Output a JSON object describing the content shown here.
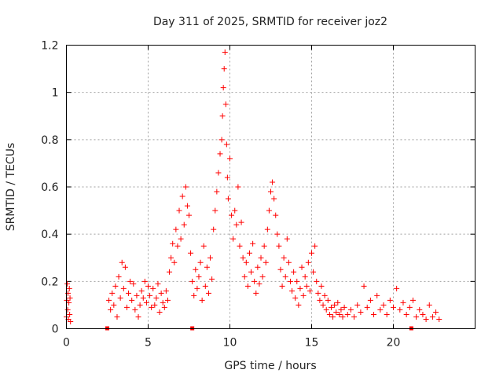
{
  "chart_data": {
    "type": "scatter",
    "title": "Day 311 of 2025, SRMTID for receiver joz2",
    "xlabel": "GPS time / hours",
    "ylabel": "SRMTID / TECUs",
    "xlim": [
      0,
      25
    ],
    "ylim": [
      0,
      1.2
    ],
    "xticks": [
      0,
      5,
      10,
      15,
      20
    ],
    "yticks": [
      0,
      0.2,
      0.4,
      0.6,
      0.8,
      1,
      1.2
    ],
    "xtick_labels": [
      "0",
      "5",
      "10",
      "15",
      "20"
    ],
    "ytick_labels": [
      "0",
      "0.2",
      "0.4",
      "0.6",
      "0.8",
      "1",
      "1.2"
    ],
    "grid": true,
    "marker": "+",
    "color": "#ff0000",
    "series": [
      {
        "name": "SRMTID",
        "x": [
          0.0,
          0.02,
          0.05,
          0.08,
          0.1,
          0.12,
          0.15,
          0.18,
          0.2,
          0.22,
          0.25,
          2.6,
          2.7,
          2.8,
          2.9,
          3.0,
          3.1,
          3.2,
          3.3,
          3.4,
          3.5,
          3.6,
          3.7,
          3.8,
          3.9,
          4.0,
          4.1,
          4.2,
          4.3,
          4.4,
          4.5,
          4.6,
          4.7,
          4.8,
          4.9,
          5.0,
          5.1,
          5.2,
          5.3,
          5.4,
          5.5,
          5.6,
          5.7,
          5.8,
          5.9,
          6.0,
          6.1,
          6.2,
          6.3,
          6.4,
          6.5,
          6.6,
          6.7,
          6.8,
          6.9,
          7.0,
          7.1,
          7.2,
          7.3,
          7.4,
          7.5,
          7.6,
          7.7,
          7.8,
          7.9,
          8.0,
          8.1,
          8.2,
          8.3,
          8.4,
          8.5,
          8.6,
          8.7,
          8.8,
          8.9,
          9.0,
          9.1,
          9.2,
          9.3,
          9.4,
          9.5,
          9.55,
          9.6,
          9.65,
          9.7,
          9.75,
          9.8,
          9.85,
          9.9,
          10.0,
          10.1,
          10.2,
          10.3,
          10.4,
          10.5,
          10.6,
          10.7,
          10.8,
          10.9,
          11.0,
          11.1,
          11.2,
          11.3,
          11.4,
          11.5,
          11.6,
          11.7,
          11.8,
          11.9,
          12.0,
          12.1,
          12.2,
          12.3,
          12.4,
          12.5,
          12.6,
          12.7,
          12.8,
          12.9,
          13.0,
          13.1,
          13.2,
          13.3,
          13.4,
          13.5,
          13.6,
          13.7,
          13.8,
          13.9,
          14.0,
          14.1,
          14.2,
          14.3,
          14.4,
          14.5,
          14.6,
          14.7,
          14.8,
          14.9,
          15.0,
          15.1,
          15.2,
          15.3,
          15.4,
          15.5,
          15.6,
          15.7,
          15.8,
          15.9,
          16.0,
          16.1,
          16.2,
          16.3,
          16.4,
          16.5,
          16.6,
          16.7,
          16.8,
          16.9,
          17.0,
          17.2,
          17.4,
          17.6,
          17.8,
          18.0,
          18.2,
          18.4,
          18.6,
          18.8,
          19.0,
          19.2,
          19.4,
          19.6,
          19.8,
          20.0,
          20.2,
          20.4,
          20.6,
          20.8,
          21.0,
          21.2,
          21.4,
          21.6,
          21.8,
          22.0,
          22.2,
          22.4,
          22.6,
          22.8
        ],
        "y": [
          0.05,
          0.12,
          0.19,
          0.08,
          0.15,
          0.04,
          0.11,
          0.17,
          0.06,
          0.13,
          0.03,
          0.12,
          0.08,
          0.15,
          0.1,
          0.18,
          0.05,
          0.22,
          0.13,
          0.28,
          0.17,
          0.26,
          0.09,
          0.15,
          0.2,
          0.12,
          0.19,
          0.08,
          0.14,
          0.05,
          0.1,
          0.16,
          0.13,
          0.2,
          0.11,
          0.18,
          0.14,
          0.09,
          0.17,
          0.1,
          0.13,
          0.19,
          0.07,
          0.15,
          0.11,
          0.09,
          0.16,
          0.12,
          0.24,
          0.3,
          0.36,
          0.28,
          0.42,
          0.35,
          0.5,
          0.38,
          0.56,
          0.44,
          0.6,
          0.52,
          0.48,
          0.32,
          0.2,
          0.14,
          0.25,
          0.17,
          0.22,
          0.28,
          0.12,
          0.35,
          0.18,
          0.26,
          0.15,
          0.3,
          0.21,
          0.42,
          0.5,
          0.58,
          0.66,
          0.74,
          0.8,
          0.9,
          1.02,
          1.1,
          1.17,
          0.95,
          0.78,
          0.64,
          0.55,
          0.72,
          0.48,
          0.38,
          0.5,
          0.44,
          0.6,
          0.35,
          0.45,
          0.3,
          0.22,
          0.28,
          0.18,
          0.32,
          0.24,
          0.36,
          0.2,
          0.15,
          0.26,
          0.19,
          0.3,
          0.22,
          0.35,
          0.28,
          0.42,
          0.5,
          0.58,
          0.62,
          0.55,
          0.48,
          0.4,
          0.35,
          0.25,
          0.18,
          0.3,
          0.22,
          0.38,
          0.28,
          0.2,
          0.16,
          0.24,
          0.13,
          0.2,
          0.1,
          0.17,
          0.26,
          0.14,
          0.22,
          0.18,
          0.28,
          0.16,
          0.32,
          0.24,
          0.35,
          0.2,
          0.15,
          0.12,
          0.18,
          0.1,
          0.14,
          0.08,
          0.12,
          0.06,
          0.09,
          0.05,
          0.1,
          0.07,
          0.11,
          0.06,
          0.08,
          0.05,
          0.09,
          0.06,
          0.08,
          0.05,
          0.1,
          0.07,
          0.18,
          0.09,
          0.12,
          0.06,
          0.14,
          0.08,
          0.1,
          0.06,
          0.12,
          0.09,
          0.17,
          0.08,
          0.11,
          0.06,
          0.09,
          0.12,
          0.05,
          0.08,
          0.06,
          0.04,
          0.1,
          0.05,
          0.07,
          0.04
        ]
      }
    ],
    "axis_markers": {
      "name": "data-gap markers",
      "x": [
        2.5,
        7.7,
        21.1
      ],
      "y": [
        0,
        0,
        0
      ]
    }
  }
}
